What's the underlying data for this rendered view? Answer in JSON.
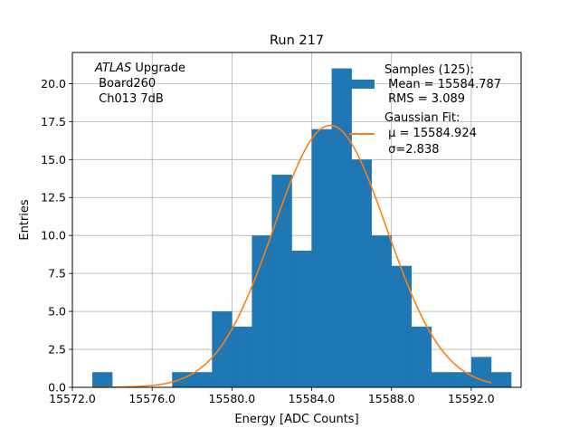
{
  "chart_data": {
    "type": "bar",
    "title": "Run 217",
    "xlabel": "Energy [ADC Counts]",
    "ylabel": "Entries",
    "xlim": [
      15572.0,
      15594.5
    ],
    "ylim": [
      0,
      22.05
    ],
    "xticks": [
      15572.0,
      15576.0,
      15580.0,
      15584.0,
      15588.0,
      15592.0
    ],
    "xtick_labels": [
      "15572.0",
      "15576.0",
      "15580.0",
      "15584.0",
      "15588.0",
      "15592.0"
    ],
    "yticks": [
      0.0,
      2.5,
      5.0,
      7.5,
      10.0,
      12.5,
      15.0,
      17.5,
      20.0
    ],
    "ytick_labels": [
      "0.0",
      "2.5",
      "5.0",
      "7.5",
      "10.0",
      "12.5",
      "15.0",
      "17.5",
      "20.0"
    ],
    "grid": true,
    "legend_position": "top-right",
    "bin_width": 1.0,
    "histogram": {
      "name": "Samples (125):",
      "color": "#1f77b4",
      "bin_starts": [
        15573,
        15574,
        15575,
        15576,
        15577,
        15578,
        15579,
        15580,
        15581,
        15582,
        15583,
        15584,
        15585,
        15586,
        15587,
        15588,
        15589,
        15590,
        15591,
        15592,
        15593
      ],
      "counts": [
        1,
        0,
        0,
        0,
        1,
        1,
        5,
        4,
        10,
        14,
        9,
        17,
        21,
        15,
        10,
        8,
        4,
        1,
        1,
        2,
        1
      ]
    },
    "fit": {
      "name": "Gaussian Fit:",
      "color": "#ff7f0e",
      "mu": 15584.924,
      "sigma": 2.838,
      "amplitude": 17.25,
      "x_range": [
        15573.0,
        15593.0
      ]
    },
    "legend": {
      "samples_lines": [
        "Samples (125):",
        " Mean = 15584.787",
        " RMS = 3.089"
      ],
      "fit_lines": [
        "Gaussian Fit:",
        " μ = 15584.924",
        " σ=2.838"
      ]
    },
    "annotation": {
      "italic": "ATLAS",
      "rest": " Upgrade",
      "line2": " Board260",
      "line3": " Ch013 7dB"
    }
  }
}
